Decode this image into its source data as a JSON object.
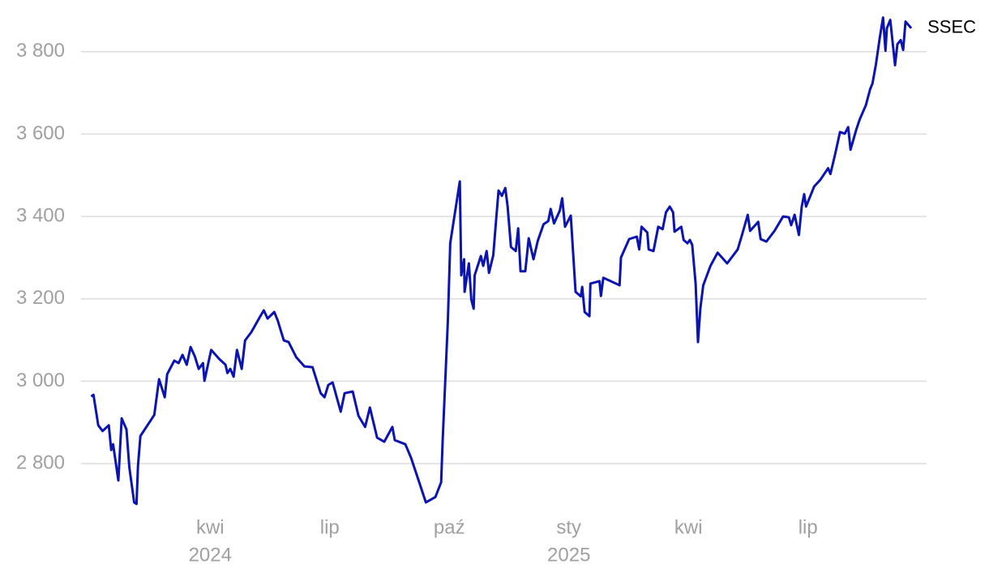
{
  "chart_data": {
    "type": "line",
    "xlim": [
      2023.98,
      2025.748
    ],
    "ylim": [
      2690,
      3890
    ],
    "yticks": [
      {
        "value": 2800,
        "label": "2 800"
      },
      {
        "value": 3000,
        "label": "3 000"
      },
      {
        "value": 3200,
        "label": "3 200"
      },
      {
        "value": 3400,
        "label": "3 400"
      },
      {
        "value": 3600,
        "label": "3 600"
      },
      {
        "value": 3800,
        "label": "3 800"
      }
    ],
    "xticks": [
      {
        "value": 2024.25,
        "label": "kwi"
      },
      {
        "value": 2024.5,
        "label": "lip"
      },
      {
        "value": 2024.75,
        "label": "paź"
      },
      {
        "value": 2025.0,
        "label": "sty"
      },
      {
        "value": 2025.25,
        "label": "kwi"
      },
      {
        "value": 2025.5,
        "label": "lip"
      }
    ],
    "xticks_year": [
      {
        "value": 2024.25,
        "label": "2024"
      },
      {
        "value": 2025.0,
        "label": "2025"
      }
    ],
    "grid": true,
    "x": [
      2024.001,
      2024.006,
      2024.016,
      2024.025,
      2024.038,
      2024.043,
      2024.047,
      2024.058,
      2024.065,
      2024.075,
      2024.081,
      2024.091,
      2024.096,
      2024.099,
      2024.104,
      2024.133,
      2024.143,
      2024.155,
      2024.16,
      2024.175,
      2024.184,
      2024.192,
      2024.201,
      2024.209,
      2024.218,
      2024.226,
      2024.235,
      2024.238,
      2024.252,
      2024.269,
      2024.282,
      2024.286,
      2024.292,
      2024.299,
      2024.306,
      2024.316,
      2024.323,
      2024.336,
      2024.353,
      2024.362,
      2024.37,
      2024.384,
      2024.391,
      2024.404,
      2024.414,
      2024.43,
      2024.447,
      2024.464,
      2024.481,
      2024.489,
      2024.497,
      2024.506,
      2024.523,
      2024.531,
      2024.548,
      2024.56,
      2024.574,
      2024.584,
      2024.599,
      2024.614,
      2024.631,
      2024.636,
      2024.658,
      2024.67,
      2024.687,
      2024.701,
      2024.721,
      2024.733,
      2024.736,
      2024.747,
      2024.752,
      2024.772,
      2024.775,
      2024.781,
      2024.782,
      2024.791,
      2024.796,
      2024.801,
      2024.803,
      2024.816,
      2024.821,
      2024.828,
      2024.833,
      2024.842,
      2024.848,
      2024.853,
      2024.86,
      2024.867,
      2024.872,
      2024.879,
      2024.889,
      2024.894,
      2024.899,
      2024.909,
      2024.916,
      2024.926,
      2024.935,
      2024.947,
      2024.957,
      2024.962,
      2024.969,
      2024.981,
      2024.986,
      2024.992,
      2025.004,
      2025.014,
      2025.025,
      2025.028,
      2025.033,
      2025.043,
      2025.045,
      2025.064,
      2025.067,
      2025.072,
      2025.106,
      2025.109,
      2025.126,
      2025.142,
      2025.147,
      2025.152,
      2025.164,
      2025.167,
      2025.177,
      2025.187,
      2025.196,
      2025.203,
      2025.211,
      2025.218,
      2025.221,
      2025.235,
      2025.24,
      2025.248,
      2025.253,
      2025.258,
      2025.265,
      2025.27,
      2025.275,
      2025.281,
      2025.296,
      2025.311,
      2025.331,
      2025.353,
      2025.362,
      2025.374,
      2025.379,
      2025.396,
      2025.401,
      2025.413,
      2025.43,
      2025.448,
      2025.46,
      2025.465,
      2025.472,
      2025.481,
      2025.487,
      2025.492,
      2025.496,
      2025.513,
      2025.526,
      2025.542,
      2025.547,
      2025.557,
      2025.567,
      2025.577,
      2025.584,
      2025.589,
      2025.601,
      2025.608,
      2025.621,
      2025.63,
      2025.635,
      2025.642,
      2025.65,
      2025.657,
      2025.662,
      2025.665,
      2025.672,
      2025.682,
      2025.687,
      2025.694,
      2025.699,
      2025.704,
      2025.716
    ],
    "series": [
      {
        "name": "SSEC",
        "color": "#0b13b0",
        "values": [
          2963,
          2967,
          2893,
          2879,
          2893,
          2833,
          2847,
          2759,
          2910,
          2883,
          2790,
          2706,
          2702,
          2794,
          2867,
          2918,
          3005,
          2961,
          3017,
          3050,
          3044,
          3064,
          3040,
          3083,
          3060,
          3030,
          3044,
          3001,
          3076,
          3054,
          3040,
          3020,
          3030,
          3011,
          3076,
          3030,
          3099,
          3119,
          3154,
          3172,
          3152,
          3168,
          3148,
          3099,
          3095,
          3058,
          3036,
          3034,
          2971,
          2961,
          2991,
          2997,
          2926,
          2971,
          2975,
          2916,
          2889,
          2936,
          2863,
          2853,
          2889,
          2857,
          2847,
          2814,
          2755,
          2706,
          2719,
          2755,
          2853,
          3148,
          3335,
          3485,
          3257,
          3296,
          3217,
          3286,
          3198,
          3176,
          3257,
          3304,
          3280,
          3316,
          3263,
          3306,
          3394,
          3463,
          3450,
          3469,
          3424,
          3326,
          3316,
          3371,
          3267,
          3267,
          3347,
          3296,
          3341,
          3381,
          3389,
          3418,
          3383,
          3414,
          3444,
          3375,
          3402,
          3217,
          3206,
          3229,
          3168,
          3158,
          3237,
          3243,
          3207,
          3251,
          3233,
          3300,
          3345,
          3351,
          3320,
          3375,
          3361,
          3320,
          3316,
          3375,
          3369,
          3410,
          3424,
          3410,
          3363,
          3375,
          3343,
          3335,
          3343,
          3331,
          3237,
          3095,
          3178,
          3233,
          3280,
          3312,
          3286,
          3320,
          3355,
          3404,
          3365,
          3387,
          3345,
          3339,
          3365,
          3400,
          3398,
          3379,
          3404,
          3355,
          3424,
          3454,
          3424,
          3473,
          3489,
          3517,
          3503,
          3552,
          3605,
          3601,
          3617,
          3562,
          3611,
          3635,
          3670,
          3709,
          3723,
          3769,
          3833,
          3883,
          3802,
          3857,
          3877,
          3767,
          3818,
          3828,
          3804,
          3873,
          3857
        ]
      }
    ]
  }
}
